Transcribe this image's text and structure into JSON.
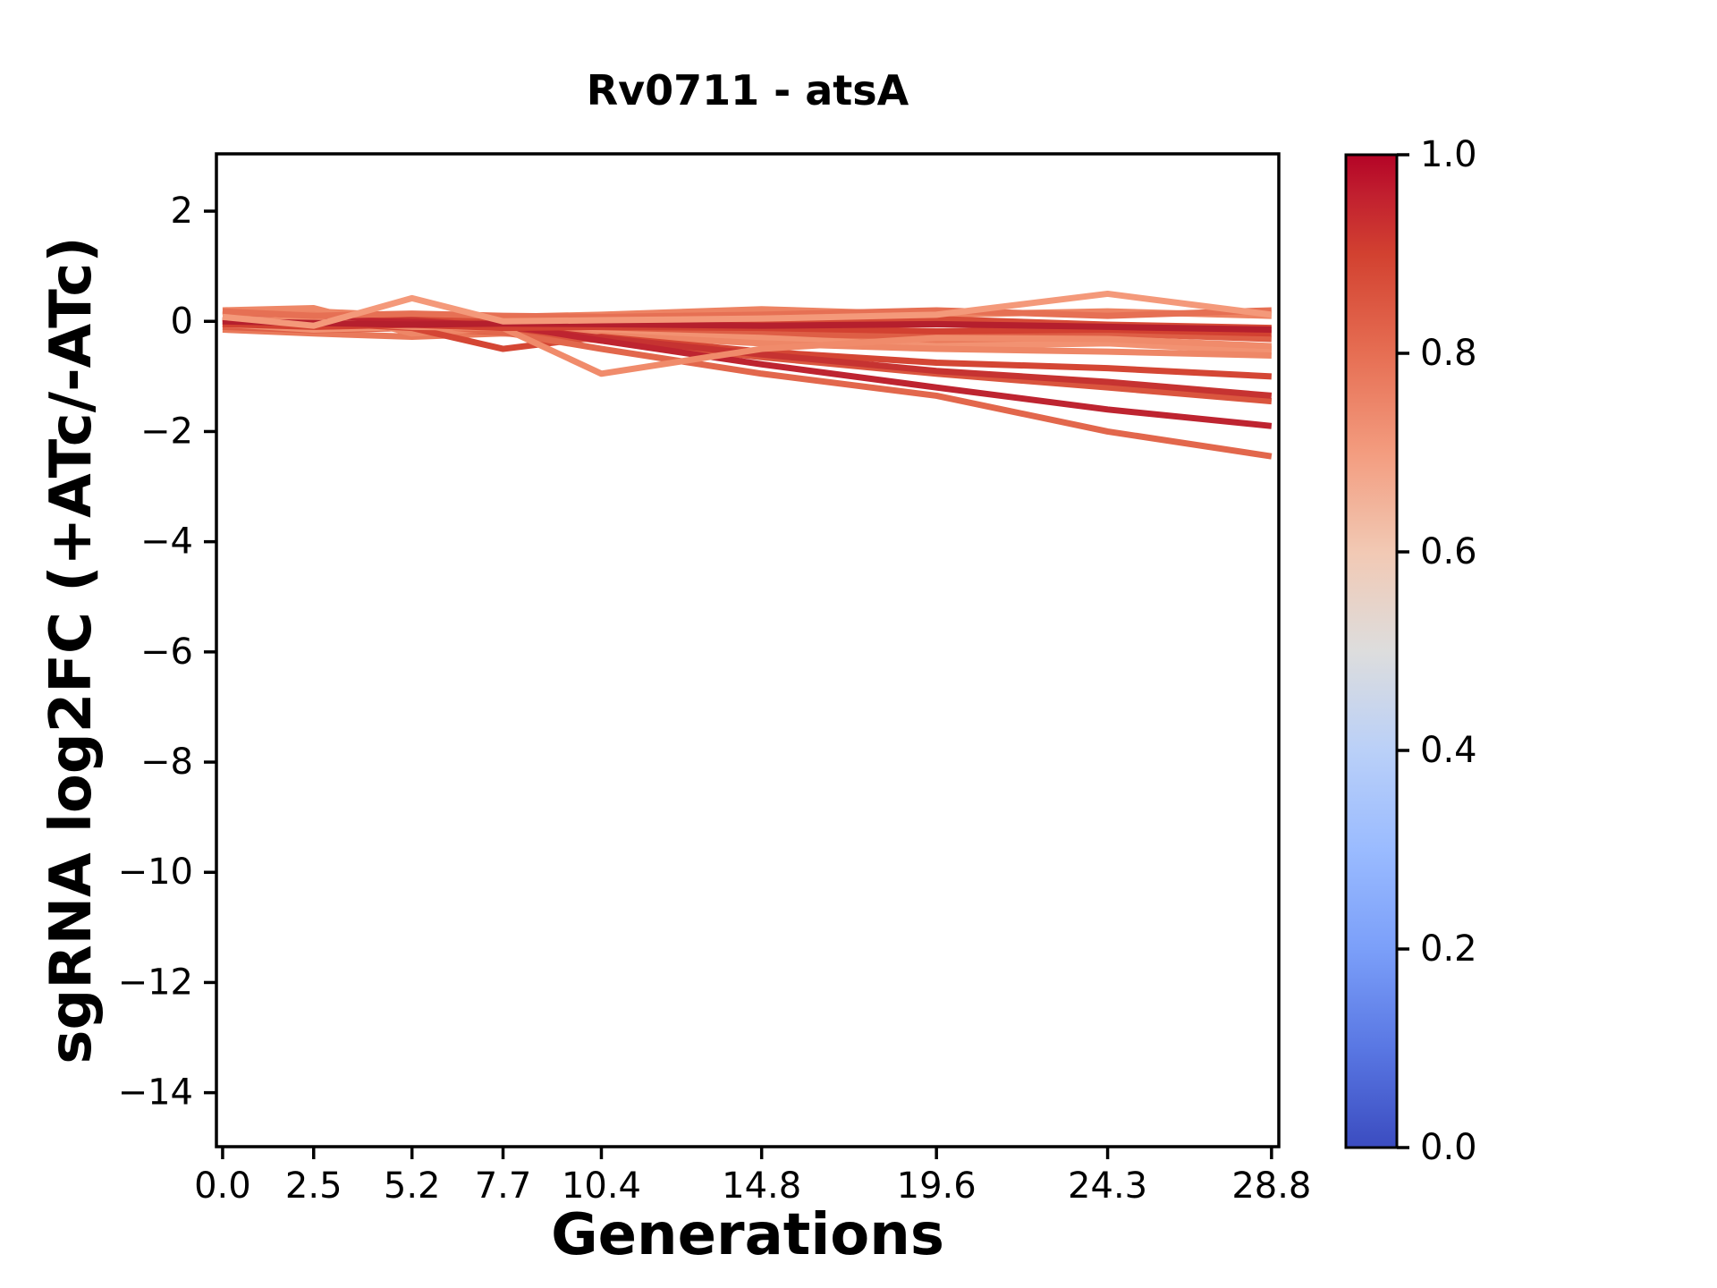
{
  "chart_data": {
    "type": "line",
    "title": "Rv0711 - atsA",
    "xlabel": "Generations",
    "ylabel": "sgRNA log2FC (+ATc/-ATc)",
    "grid": false,
    "legend": "none (colorbar encodes line values)",
    "x": [
      0.0,
      2.5,
      5.2,
      7.7,
      10.4,
      14.8,
      19.6,
      24.3,
      28.8
    ],
    "xlim": [
      -0.17,
      29.0
    ],
    "ylim": [
      -14.98,
      3.04
    ],
    "xticks": [
      {
        "value": 0.0,
        "label": "0.0"
      },
      {
        "value": 2.5,
        "label": "2.5"
      },
      {
        "value": 5.2,
        "label": "5.2"
      },
      {
        "value": 7.7,
        "label": "7.7"
      },
      {
        "value": 10.4,
        "label": "10.4"
      },
      {
        "value": 14.8,
        "label": "14.8"
      },
      {
        "value": 19.6,
        "label": "19.6"
      },
      {
        "value": 24.3,
        "label": "24.3"
      },
      {
        "value": 28.8,
        "label": "28.8"
      }
    ],
    "yticks": [
      {
        "value": 2,
        "label": "2"
      },
      {
        "value": 0,
        "label": "0"
      },
      {
        "value": -2,
        "label": "−2"
      },
      {
        "value": -4,
        "label": "−4"
      },
      {
        "value": -6,
        "label": "−6"
      },
      {
        "value": -8,
        "label": "−8"
      },
      {
        "value": -10,
        "label": "−10"
      },
      {
        "value": -12,
        "label": "−12"
      },
      {
        "value": -14,
        "label": "−14"
      }
    ],
    "series": [
      {
        "colormap_value": 0.76,
        "color": "#ed8363",
        "y": [
          0.12,
          0.18,
          0.1,
          0.08,
          0.12,
          0.22,
          0.12,
          0.18,
          0.1
        ]
      },
      {
        "colormap_value": 0.78,
        "color": "#e97a5b",
        "y": [
          -0.15,
          -0.22,
          -0.28,
          -0.22,
          -0.3,
          -0.28,
          -0.38,
          -0.35,
          -0.5
        ]
      },
      {
        "colormap_value": 0.84,
        "color": "#de5e45",
        "y": [
          -0.1,
          -0.16,
          -0.12,
          -0.2,
          -0.16,
          -0.22,
          -0.28,
          -0.22,
          -0.32
        ]
      },
      {
        "colormap_value": 0.88,
        "color": "#d64b37",
        "y": [
          0.04,
          0.0,
          0.05,
          -0.02,
          -0.06,
          0.0,
          0.04,
          -0.06,
          -0.12
        ]
      },
      {
        "colormap_value": 0.72,
        "color": "#f29272",
        "y": [
          -0.05,
          -0.15,
          -0.1,
          -0.18,
          -0.22,
          -0.3,
          -0.45,
          -0.4,
          -0.55
        ]
      },
      {
        "colormap_value": 0.75,
        "color": "#ee8767",
        "y": [
          0.2,
          0.24,
          -0.22,
          -0.12,
          -0.25,
          -0.4,
          -0.5,
          -0.55,
          -0.62
        ]
      },
      {
        "colormap_value": 0.89,
        "color": "#d44634",
        "y": [
          0.0,
          -0.02,
          -0.12,
          -0.5,
          -0.28,
          -0.55,
          -0.75,
          -0.85,
          -1.0
        ]
      },
      {
        "colormap_value": 0.86,
        "color": "#da553e",
        "y": [
          0.05,
          0.0,
          -0.05,
          -0.15,
          -0.35,
          -0.65,
          -0.95,
          -1.2,
          -1.45
        ]
      },
      {
        "colormap_value": 0.93,
        "color": "#c63331",
        "y": [
          0.0,
          -0.05,
          0.02,
          -0.1,
          -0.3,
          -0.6,
          -0.9,
          -1.1,
          -1.35
        ]
      },
      {
        "colormap_value": 0.82,
        "color": "#e2674c",
        "y": [
          0.06,
          -0.1,
          -0.04,
          -0.2,
          -0.5,
          -0.95,
          -1.35,
          -2.0,
          -2.45
        ]
      },
      {
        "colormap_value": 0.95,
        "color": "#be2430",
        "y": [
          0.02,
          0.05,
          -0.02,
          -0.06,
          -0.35,
          -0.78,
          -1.2,
          -1.6,
          -1.9
        ]
      },
      {
        "colormap_value": 0.74,
        "color": "#f08b6b",
        "y": [
          0.05,
          0.0,
          -0.1,
          -0.12,
          -0.95,
          -0.5,
          -0.3,
          -0.32,
          -0.45
        ]
      },
      {
        "colormap_value": 0.9,
        "color": "#d24131",
        "y": [
          -0.05,
          -0.1,
          -0.06,
          -0.12,
          -0.1,
          -0.12,
          -0.18,
          -0.15,
          -0.22
        ]
      },
      {
        "colormap_value": 0.97,
        "color": "#b51f2d",
        "y": [
          0.0,
          -0.03,
          -0.06,
          -0.04,
          -0.05,
          -0.08,
          -0.05,
          -0.1,
          -0.15
        ]
      },
      {
        "colormap_value": 0.8,
        "color": "#e67054",
        "y": [
          0.18,
          0.1,
          0.14,
          0.1,
          0.08,
          0.12,
          0.2,
          0.1,
          0.2
        ]
      },
      {
        "colormap_value": 0.7,
        "color": "#f4997a",
        "y": [
          0.08,
          -0.08,
          0.42,
          0.0,
          0.02,
          0.05,
          0.12,
          0.5,
          0.12
        ]
      }
    ],
    "colorbar": {
      "colormap": "coolwarm",
      "min": 0.0,
      "max": 1.0,
      "ticks": [
        {
          "value": 1.0,
          "label": "1.0"
        },
        {
          "value": 0.8,
          "label": "0.8"
        },
        {
          "value": 0.6,
          "label": "0.6"
        },
        {
          "value": 0.4,
          "label": "0.4"
        },
        {
          "value": 0.2,
          "label": "0.2"
        },
        {
          "value": 0.0,
          "label": "0.0"
        }
      ],
      "gradient_stops": [
        {
          "offset": 0,
          "color": "#3b4cc0"
        },
        {
          "offset": 10,
          "color": "#5977e3"
        },
        {
          "offset": 20,
          "color": "#7b9ff9"
        },
        {
          "offset": 30,
          "color": "#9abbff"
        },
        {
          "offset": 40,
          "color": "#bad0f8"
        },
        {
          "offset": 50,
          "color": "#dddddd"
        },
        {
          "offset": 60,
          "color": "#f2c9b4"
        },
        {
          "offset": 70,
          "color": "#f39c7f"
        },
        {
          "offset": 80,
          "color": "#e66e53"
        },
        {
          "offset": 90,
          "color": "#d24130"
        },
        {
          "offset": 96,
          "color": "#c11f2f"
        },
        {
          "offset": 100,
          "color": "#b40426"
        }
      ]
    }
  }
}
